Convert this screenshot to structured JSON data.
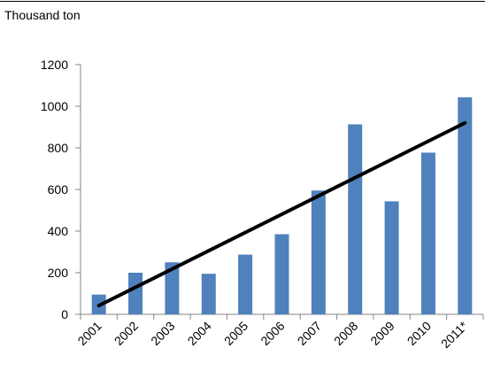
{
  "header": {
    "y_unit": "Thousand ton"
  },
  "chart_data": {
    "type": "bar",
    "title": "",
    "xlabel": "",
    "ylabel": "Thousand ton",
    "categories": [
      "2001",
      "2002",
      "2003",
      "2004",
      "2005",
      "2006",
      "2007",
      "2008",
      "2009",
      "2010",
      "2011*"
    ],
    "values": [
      95,
      200,
      250,
      195,
      287,
      385,
      595,
      913,
      543,
      777,
      1043
    ],
    "ylim": [
      0,
      1200
    ],
    "yticks": [
      0,
      200,
      400,
      600,
      800,
      1000,
      1200
    ],
    "grid": false,
    "legend": "none",
    "trendline": {
      "type": "linear",
      "start": 42,
      "end": 920
    },
    "colors": {
      "bar": "#4f81bd",
      "trendline": "#000000",
      "axis": "#868686"
    }
  }
}
